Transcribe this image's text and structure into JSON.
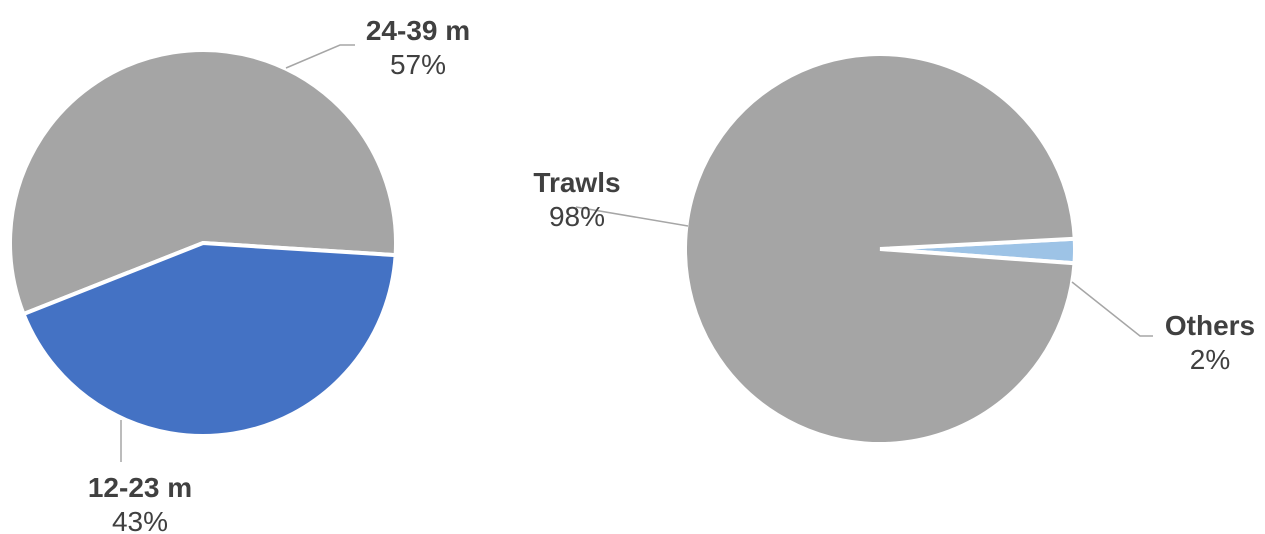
{
  "chart_data": [
    {
      "type": "pie",
      "slices": [
        {
          "label": "24-39 m",
          "value": 57,
          "value_label": "57%",
          "color": "#a5a5a5"
        },
        {
          "label": "12-23 m",
          "value": 43,
          "value_label": "43%",
          "color": "#4472c4"
        }
      ]
    },
    {
      "type": "pie",
      "slices": [
        {
          "label": "Others",
          "value": 2,
          "value_label": "2%",
          "color": "#9dc3e6"
        },
        {
          "label": "Trawls",
          "value": 98,
          "value_label": "98%",
          "color": "#a5a5a5"
        }
      ]
    }
  ]
}
